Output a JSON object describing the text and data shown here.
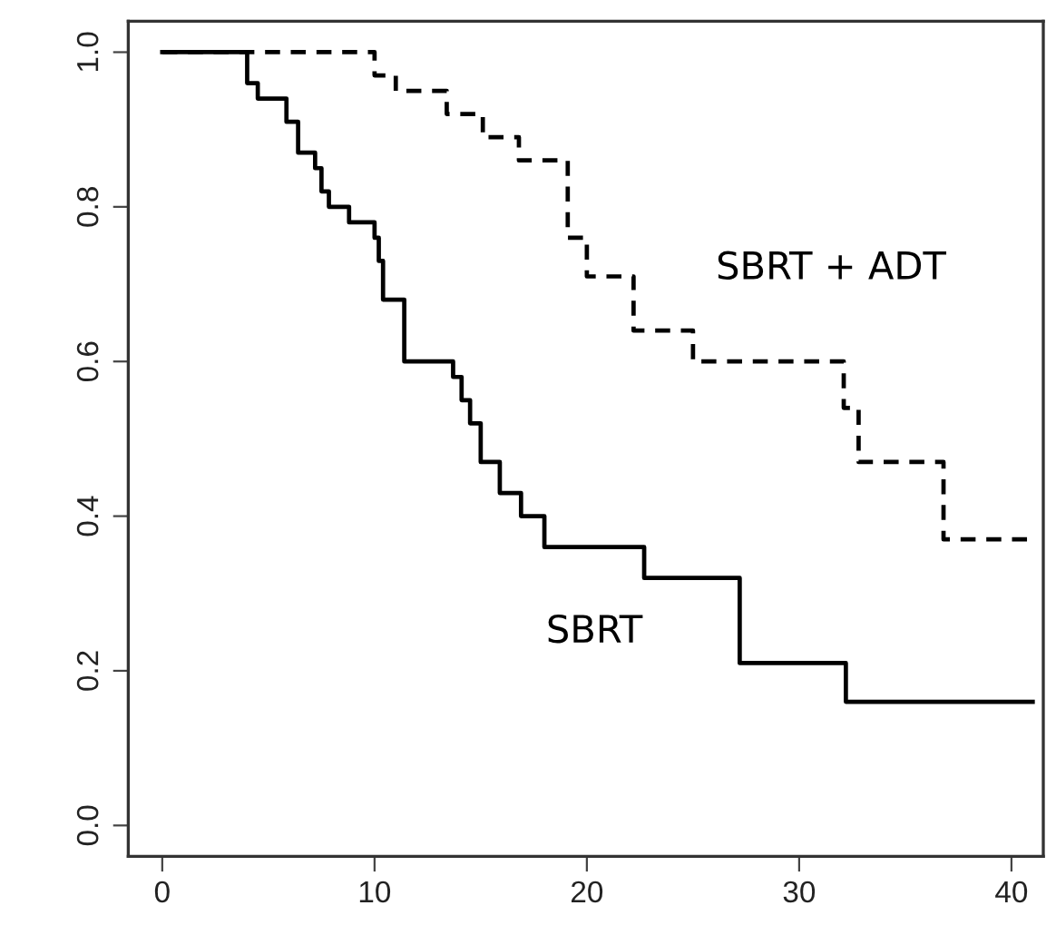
{
  "chart_data": {
    "type": "step",
    "series": [
      {
        "name": "SBRT",
        "color": "#000000",
        "line_style": "solid",
        "x": [
          0,
          4.0,
          4.5,
          5.85,
          6.4,
          7.2,
          7.5,
          7.85,
          8.8,
          10.0,
          10.2,
          10.4,
          11.4,
          13.7,
          14.1,
          14.5,
          15.0,
          15.9,
          16.9,
          18.0,
          22.7,
          27.2,
          32.2,
          41
        ],
        "values": [
          1,
          0.96,
          0.94,
          0.91,
          0.87,
          0.85,
          0.82,
          0.8,
          0.78,
          0.76,
          0.73,
          0.68,
          0.6,
          0.58,
          0.55,
          0.52,
          0.47,
          0.43,
          0.4,
          0.36,
          0.32,
          0.21,
          0.16,
          0.16
        ]
      },
      {
        "name": "SBRT + ADT",
        "color": "#000000",
        "line_style": "dashed",
        "x": [
          0,
          10.0,
          11.0,
          13.4,
          15.1,
          16.8,
          19.1,
          20.0,
          22.2,
          25.0,
          32.1,
          32.8,
          36.8,
          41
        ],
        "values": [
          1,
          0.97,
          0.95,
          0.92,
          0.89,
          0.86,
          0.76,
          0.71,
          0.64,
          0.6,
          0.54,
          0.47,
          0.37,
          0.37
        ]
      }
    ],
    "xlim": [
      -1.6,
      41.5
    ],
    "ylim": [
      -0.04,
      1.04
    ],
    "xticks": [
      0,
      10,
      20,
      30,
      40
    ],
    "yticks": [
      {
        "value": 0,
        "label": "0.0"
      },
      {
        "value": 0.2,
        "label": "0.2"
      },
      {
        "value": 0.4,
        "label": "0.4"
      },
      {
        "value": 0.6,
        "label": "0.6"
      },
      {
        "value": 0.8,
        "label": "0.8"
      },
      {
        "value": 1,
        "label": "1.0"
      }
    ],
    "grid": false,
    "legend": false
  }
}
